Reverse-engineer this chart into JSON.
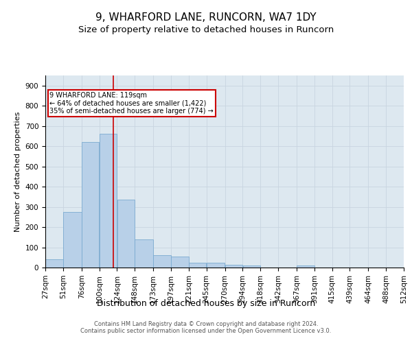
{
  "title": "9, WHARFORD LANE, RUNCORN, WA7 1DY",
  "subtitle": "Size of property relative to detached houses in Runcorn",
  "xlabel": "Distribution of detached houses by size in Runcorn",
  "ylabel": "Number of detached properties",
  "bin_edges": [
    27,
    51,
    76,
    100,
    124,
    148,
    173,
    197,
    221,
    245,
    270,
    294,
    318,
    342,
    367,
    391,
    415,
    439,
    464,
    488,
    512
  ],
  "bar_heights": [
    40,
    275,
    620,
    660,
    335,
    140,
    60,
    55,
    25,
    25,
    15,
    10,
    0,
    0,
    10,
    0,
    0,
    0,
    0,
    0
  ],
  "bar_color": "#b8d0e8",
  "bar_edge_color": "#7aaad0",
  "grid_color": "#c8d4e0",
  "background_color": "#dde8f0",
  "property_size": 119,
  "vline_color": "#cc0000",
  "annotation_text": "9 WHARFORD LANE: 119sqm\n← 64% of detached houses are smaller (1,422)\n35% of semi-detached houses are larger (774) →",
  "annotation_box_color": "#cc0000",
  "ylim": [
    0,
    950
  ],
  "yticks": [
    0,
    100,
    200,
    300,
    400,
    500,
    600,
    700,
    800,
    900
  ],
  "footer_text": "Contains HM Land Registry data © Crown copyright and database right 2024.\nContains public sector information licensed under the Open Government Licence v3.0.",
  "title_fontsize": 11,
  "subtitle_fontsize": 9.5,
  "tick_fontsize": 7.5,
  "xlabel_fontsize": 9,
  "ylabel_fontsize": 8,
  "footer_fontsize": 6
}
